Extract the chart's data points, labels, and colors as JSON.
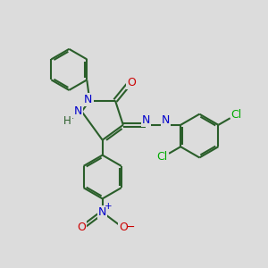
{
  "background_color": "#dcdcdc",
  "bond_color": "#2a5e2a",
  "atom_colors": {
    "N": "#0000cc",
    "O": "#cc0000",
    "Cl": "#00aa00",
    "H": "#2a5e2a",
    "C": "#2a5e2a"
  },
  "bond_width": 1.5,
  "figsize": [
    3.0,
    3.0
  ],
  "dpi": 100
}
